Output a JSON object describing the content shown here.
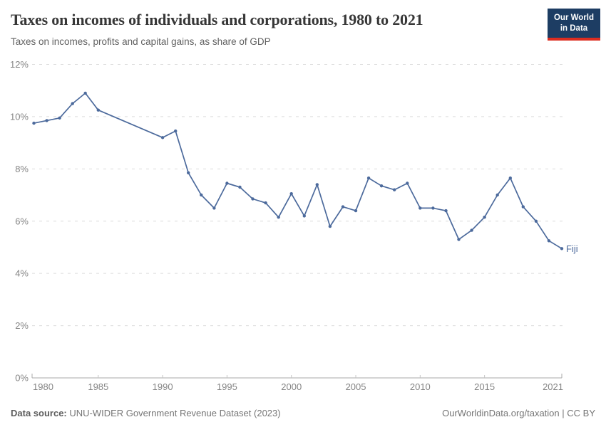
{
  "header": {
    "title": "Taxes on incomes of individuals and corporations, 1980 to 2021",
    "subtitle": "Taxes on incomes, profits and capital gains, as share of GDP"
  },
  "logo": {
    "line1": "Our World",
    "line2": "in Data",
    "bg_color": "#1d3d63",
    "bar_color": "#dc2d20"
  },
  "chart_data": {
    "type": "line",
    "title": "Taxes on incomes of individuals and corporations, 1980 to 2021",
    "subtitle": "Taxes on incomes, profits and capital gains, as share of GDP",
    "x_range": [
      1980,
      2021
    ],
    "y_range": [
      0,
      12
    ],
    "x_ticks": [
      1980,
      1985,
      1990,
      1995,
      2000,
      2005,
      2010,
      2015,
      2021
    ],
    "y_ticks": [
      "0%",
      "2%",
      "4%",
      "6%",
      "8%",
      "10%",
      "12%"
    ],
    "grid": "horizontal-dashed",
    "legend_position": "end-of-line-label",
    "series": [
      {
        "name": "Fiji",
        "color": "#4c6a9c",
        "unit": "%",
        "years": [
          1980,
          1981,
          1982,
          1983,
          1984,
          1985,
          1990,
          1991,
          1992,
          1993,
          1994,
          1995,
          1996,
          1997,
          1998,
          1999,
          2000,
          2001,
          2002,
          2003,
          2004,
          2005,
          2006,
          2007,
          2008,
          2009,
          2010,
          2011,
          2012,
          2013,
          2014,
          2015,
          2016,
          2017,
          2018,
          2019,
          2020,
          2021
        ],
        "values": [
          9.75,
          9.85,
          9.95,
          10.5,
          10.9,
          10.25,
          9.2,
          9.45,
          7.85,
          7.0,
          6.5,
          7.45,
          7.3,
          6.85,
          6.7,
          6.15,
          7.05,
          6.2,
          7.4,
          5.8,
          6.55,
          6.4,
          7.65,
          7.35,
          7.2,
          7.45,
          6.5,
          6.5,
          6.4,
          5.3,
          5.65,
          6.15,
          7.0,
          7.65,
          6.55,
          6.0,
          5.25,
          4.95
        ]
      }
    ]
  },
  "footer": {
    "source_label": "Data source:",
    "source_text": " UNU-WIDER Government Revenue Dataset (2023)",
    "credit_link": "OurWorldinData.org/taxation",
    "credit_suffix": " | CC BY"
  },
  "colors": {
    "line": "#4c6a9c",
    "grid": "#dcdcdc",
    "axis": "#a9a9a9",
    "tick_label": "#858585",
    "title": "#373737",
    "subtitle": "#616161",
    "footer": "#757575"
  }
}
